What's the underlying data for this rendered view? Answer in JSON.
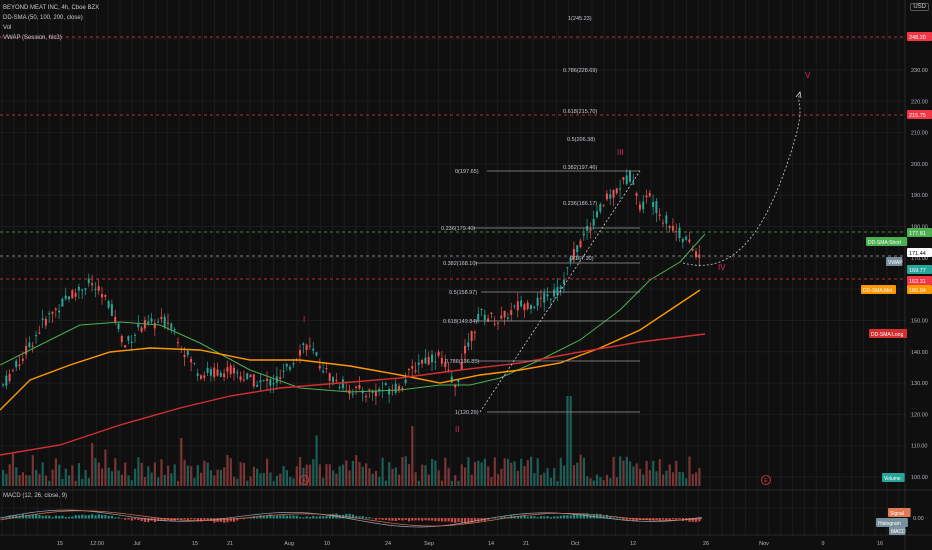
{
  "legend": {
    "title": "BEYOND MEAT INC, 4h, Cboe BZX",
    "sma": "DD-SMA (50, 100, 200, close)",
    "vol": "Vol",
    "vwap": "VWAP (Session, hlc3)"
  },
  "currency": "USD",
  "macd_legend": "MACD (12, 26, close, 9)",
  "price_axis": {
    "ticks": [
      "230.00",
      "220.00",
      "210.00",
      "200.00",
      "190.00",
      "180.00",
      "170.00",
      "160.00",
      "150.00",
      "140.00",
      "130.00",
      "120.00",
      "110.00",
      "100.00",
      "90.00"
    ],
    "tags": [
      {
        "text": "248.20",
        "color": "#f23645",
        "key": "top_red"
      },
      {
        "text": "215.75",
        "color": "#f23645",
        "key": "red2"
      },
      {
        "text": "177.81",
        "color": "#4caf50",
        "key": "green"
      },
      {
        "text": "171.44",
        "color": "#ffffff",
        "key": "price"
      },
      {
        "text": "169.77",
        "color": "#26a69a",
        "key": "teal"
      },
      {
        "text": "163.31",
        "color": "#f23645",
        "key": "red3"
      },
      {
        "text": "160.04",
        "color": "#ff9800",
        "key": "orange"
      }
    ],
    "labels": {
      "sma_short": "DD-SMA:Short",
      "vwap": "VWAP",
      "sma_mid": "DD-SMA:Mid",
      "sma_long": "DD-SMA:Long",
      "volume": "Volume",
      "signal": "Signal",
      "histogram": "Histogram",
      "macd": "MACD"
    },
    "macd_ticks": [
      "0.00"
    ]
  },
  "time_axis": [
    "15",
    "12:00",
    "Jul",
    "15",
    "21",
    "Aug",
    "10",
    "24",
    "Sep",
    "14",
    "21",
    "Oct",
    "12",
    "26",
    "Nov",
    "9",
    "16"
  ],
  "fib": [
    {
      "label": "1(245.23)"
    },
    {
      "label": "0.786(228.69)"
    },
    {
      "label": "0.618(215.70)"
    },
    {
      "label": "0.5(206.38)"
    },
    {
      "label": "0.382(197.46)"
    },
    {
      "label": "0.236(186.17)"
    },
    {
      "label": "0(197.65)"
    },
    {
      "label": "0.236(179.40)"
    },
    {
      "label": "0.382(168.10)"
    },
    {
      "label": "0.5(158.97)"
    },
    {
      "label": "0.618(149.84)"
    },
    {
      "label": "0.786(136.85)"
    },
    {
      "label": "1(120.29)"
    },
    {
      "label": "0(167.30)"
    }
  ],
  "waves": {
    "i": "I",
    "ii": "II",
    "iii": "III",
    "iv": "IV",
    "v": "V"
  },
  "events": {
    "e1": "E",
    "e2": "E",
    "e3": "E"
  },
  "colors": {
    "up": "#26a69a",
    "down": "#ef5350",
    "sma_short": "#4caf50",
    "sma_mid": "#ff9800",
    "sma_long": "#d32f2f",
    "bg": "#0f0f0f"
  }
}
